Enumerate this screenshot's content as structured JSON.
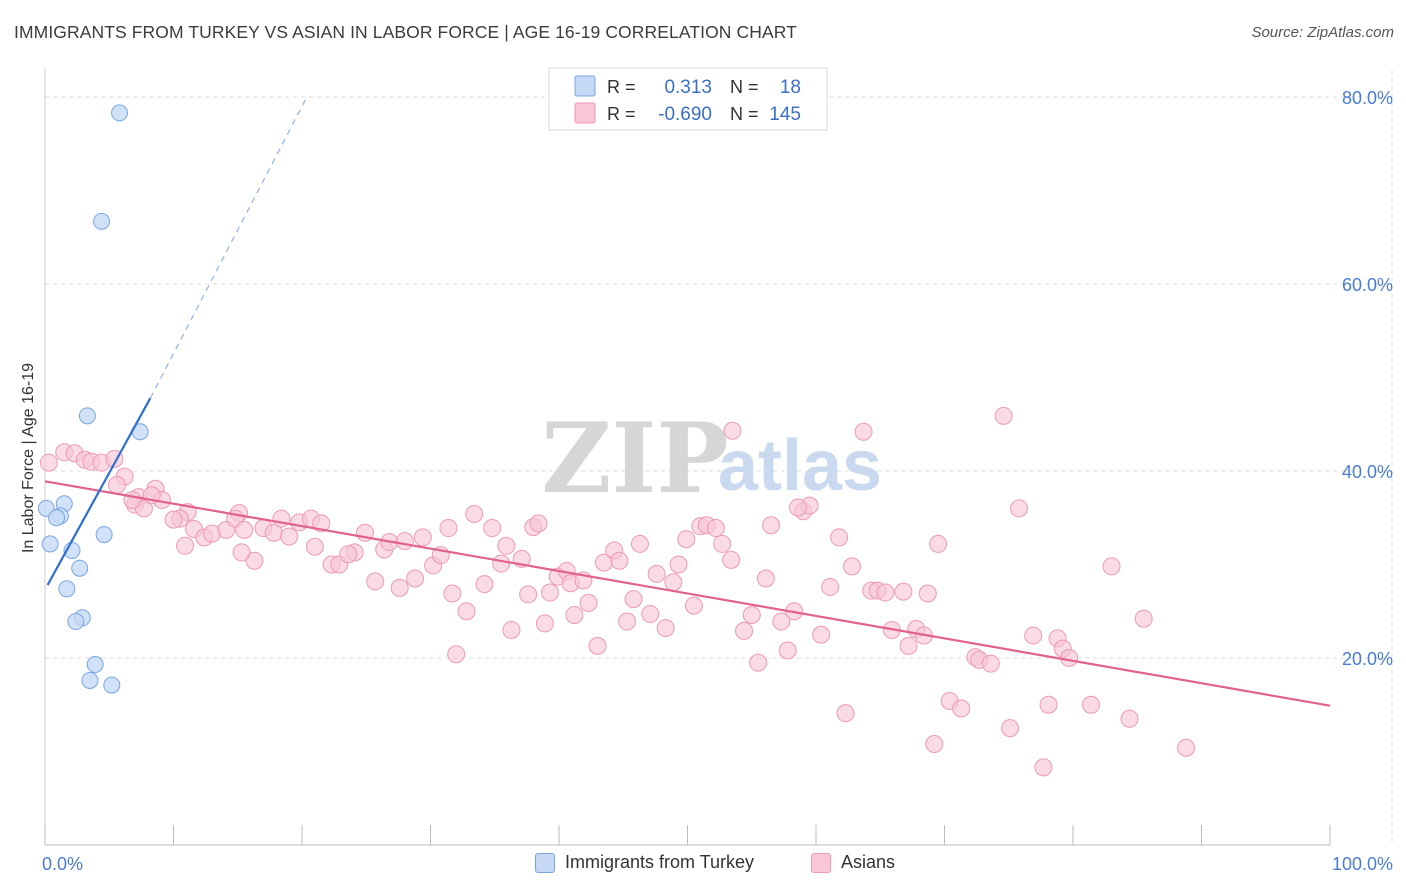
{
  "title": "IMMIGRANTS FROM TURKEY VS ASIAN IN LABOR FORCE | AGE 16-19 CORRELATION CHART",
  "source": "Source: ZipAtlas.com",
  "watermark": {
    "zip": "ZIP",
    "atlas": "atlas"
  },
  "legend_stats": [
    {
      "r_label": "R =",
      "r_value": "0.313",
      "n_label": "N =",
      "n_value": "18"
    },
    {
      "r_label": "R =",
      "r_value": "-0.690",
      "n_label": "N =",
      "n_value": "145"
    }
  ],
  "colors": {
    "turkey_fill": "#c5d9f5",
    "turkey_stroke": "#7aa6e0",
    "turkey_line": "#2e6fd1",
    "asian_fill": "#f8c6d6",
    "asian_stroke": "#ec9ab7",
    "asian_line": "#e2628f",
    "axis_label": "#4a7ccf",
    "grid": "#dddddd"
  },
  "chart_data": {
    "type": "scatter",
    "title": "IMMIGRANTS FROM TURKEY VS ASIAN IN LABOR FORCE | AGE 16-19 CORRELATION CHART",
    "xlabel": "",
    "ylabel": "In Labor Force | Age 16-19",
    "xlim": [
      0,
      100
    ],
    "ylim": [
      0,
      82
    ],
    "x_tick_labels": [
      "0.0%",
      "100.0%"
    ],
    "y_ticks": [
      20,
      40,
      60,
      80
    ],
    "y_tick_labels": [
      "20.0%",
      "40.0%",
      "60.0%",
      "80.0%"
    ],
    "grid": true,
    "legend_position": "bottom",
    "series": [
      {
        "name": "Immigrants from Turkey",
        "color": "#c5d9f5",
        "points": [
          [
            5.8,
            78.3
          ],
          [
            4.4,
            66.7
          ],
          [
            3.3,
            45.9
          ],
          [
            7.4,
            44.2
          ],
          [
            0.1,
            36.0
          ],
          [
            1.5,
            36.5
          ],
          [
            1.2,
            35.2
          ],
          [
            0.9,
            35.0
          ],
          [
            4.6,
            33.2
          ],
          [
            0.4,
            32.2
          ],
          [
            2.1,
            31.5
          ],
          [
            2.7,
            29.6
          ],
          [
            1.7,
            27.4
          ],
          [
            2.9,
            24.3
          ],
          [
            2.4,
            23.9
          ],
          [
            3.9,
            19.3
          ],
          [
            3.5,
            17.6
          ],
          [
            5.2,
            17.1
          ]
        ],
        "trend": {
          "x": [
            0.2,
            8.2
          ],
          "y": [
            27.8,
            47.8
          ],
          "dashed_to": [
            20.3,
            79.8
          ]
        }
      },
      {
        "name": "Asians",
        "color": "#f8c6d6",
        "points": [
          [
            0.3,
            40.9
          ],
          [
            1.5,
            42.0
          ],
          [
            2.3,
            41.9
          ],
          [
            3.1,
            41.2
          ],
          [
            3.6,
            41.0
          ],
          [
            4.4,
            40.9
          ],
          [
            5.4,
            41.3
          ],
          [
            6.2,
            39.4
          ],
          [
            5.6,
            38.5
          ],
          [
            7.3,
            37.2
          ],
          [
            8.6,
            38.1
          ],
          [
            7.0,
            36.4
          ],
          [
            7.7,
            36.0
          ],
          [
            9.1,
            36.9
          ],
          [
            6.8,
            36.9
          ],
          [
            11.1,
            35.6
          ],
          [
            11.6,
            33.8
          ],
          [
            10.5,
            34.9
          ],
          [
            12.4,
            32.9
          ],
          [
            13.0,
            33.3
          ],
          [
            10.9,
            32.0
          ],
          [
            14.1,
            33.7
          ],
          [
            15.1,
            35.5
          ],
          [
            14.8,
            34.9
          ],
          [
            15.5,
            33.7
          ],
          [
            17.0,
            33.9
          ],
          [
            17.8,
            33.4
          ],
          [
            19.0,
            33.0
          ],
          [
            18.4,
            34.9
          ],
          [
            16.3,
            30.4
          ],
          [
            15.3,
            31.3
          ],
          [
            19.8,
            34.5
          ],
          [
            20.7,
            34.9
          ],
          [
            21.5,
            34.4
          ],
          [
            21.0,
            31.9
          ],
          [
            22.3,
            30.0
          ],
          [
            22.9,
            30.0
          ],
          [
            24.1,
            31.3
          ],
          [
            23.6,
            31.1
          ],
          [
            24.9,
            33.4
          ],
          [
            25.7,
            28.2
          ],
          [
            26.4,
            31.6
          ],
          [
            26.8,
            32.4
          ],
          [
            27.6,
            27.5
          ],
          [
            28.0,
            32.5
          ],
          [
            28.8,
            28.5
          ],
          [
            29.4,
            32.9
          ],
          [
            30.2,
            29.9
          ],
          [
            30.8,
            31.0
          ],
          [
            31.4,
            33.9
          ],
          [
            32.0,
            20.4
          ],
          [
            31.7,
            26.9
          ],
          [
            32.8,
            25.0
          ],
          [
            33.4,
            35.4
          ],
          [
            34.2,
            27.9
          ],
          [
            34.8,
            33.9
          ],
          [
            35.5,
            30.1
          ],
          [
            35.9,
            32.0
          ],
          [
            36.3,
            23.0
          ],
          [
            37.1,
            30.6
          ],
          [
            37.6,
            26.8
          ],
          [
            38.0,
            34.0
          ],
          [
            38.4,
            34.4
          ],
          [
            38.9,
            23.7
          ],
          [
            39.3,
            27.0
          ],
          [
            39.9,
            28.7
          ],
          [
            40.6,
            29.3
          ],
          [
            40.9,
            28.0
          ],
          [
            41.2,
            24.6
          ],
          [
            41.9,
            28.3
          ],
          [
            42.3,
            25.9
          ],
          [
            43.0,
            21.3
          ],
          [
            43.5,
            30.2
          ],
          [
            44.3,
            31.5
          ],
          [
            44.7,
            30.4
          ],
          [
            45.3,
            23.9
          ],
          [
            45.8,
            26.3
          ],
          [
            46.3,
            32.2
          ],
          [
            47.1,
            24.7
          ],
          [
            47.6,
            29.0
          ],
          [
            48.3,
            23.2
          ],
          [
            48.9,
            28.1
          ],
          [
            49.3,
            30.0
          ],
          [
            49.9,
            32.7
          ],
          [
            50.5,
            25.6
          ],
          [
            51.0,
            34.1
          ],
          [
            51.5,
            34.2
          ],
          [
            52.2,
            33.9
          ],
          [
            52.7,
            32.2
          ],
          [
            53.4,
            30.5
          ],
          [
            54.4,
            22.9
          ],
          [
            55.0,
            24.6
          ],
          [
            55.5,
            19.5
          ],
          [
            56.1,
            28.5
          ],
          [
            56.5,
            34.2
          ],
          [
            57.3,
            23.9
          ],
          [
            57.8,
            20.8
          ],
          [
            58.3,
            25.0
          ],
          [
            59.0,
            35.7
          ],
          [
            59.5,
            36.3
          ],
          [
            60.4,
            22.5
          ],
          [
            61.1,
            27.6
          ],
          [
            61.8,
            32.9
          ],
          [
            62.3,
            14.1
          ],
          [
            62.8,
            29.8
          ],
          [
            63.7,
            44.2
          ],
          [
            64.3,
            27.2
          ],
          [
            64.8,
            27.2
          ],
          [
            65.4,
            27.0
          ],
          [
            65.9,
            23.0
          ],
          [
            66.8,
            27.1
          ],
          [
            67.2,
            21.3
          ],
          [
            67.8,
            23.1
          ],
          [
            68.4,
            22.4
          ],
          [
            68.7,
            26.9
          ],
          [
            69.2,
            10.8
          ],
          [
            69.5,
            32.2
          ],
          [
            70.4,
            15.4
          ],
          [
            71.3,
            14.6
          ],
          [
            72.4,
            20.1
          ],
          [
            72.7,
            19.8
          ],
          [
            73.6,
            19.4
          ],
          [
            74.6,
            45.9
          ],
          [
            75.1,
            12.5
          ],
          [
            75.8,
            36.0
          ],
          [
            76.9,
            22.4
          ],
          [
            77.7,
            8.3
          ],
          [
            78.1,
            15.0
          ],
          [
            78.8,
            22.1
          ],
          [
            79.2,
            21.0
          ],
          [
            79.7,
            20.0
          ],
          [
            81.4,
            15.0
          ],
          [
            83.0,
            29.8
          ],
          [
            84.4,
            13.5
          ],
          [
            85.5,
            24.2
          ],
          [
            88.8,
            10.4
          ],
          [
            53.5,
            44.3
          ],
          [
            58.6,
            36.1
          ],
          [
            8.3,
            37.4
          ],
          [
            10.0,
            34.8
          ]
        ],
        "trend": {
          "x": [
            0,
            100
          ],
          "y": [
            38.9,
            14.9
          ]
        }
      }
    ]
  },
  "bottom_legend": [
    {
      "label": "Immigrants from Turkey"
    },
    {
      "label": "Asians"
    }
  ]
}
